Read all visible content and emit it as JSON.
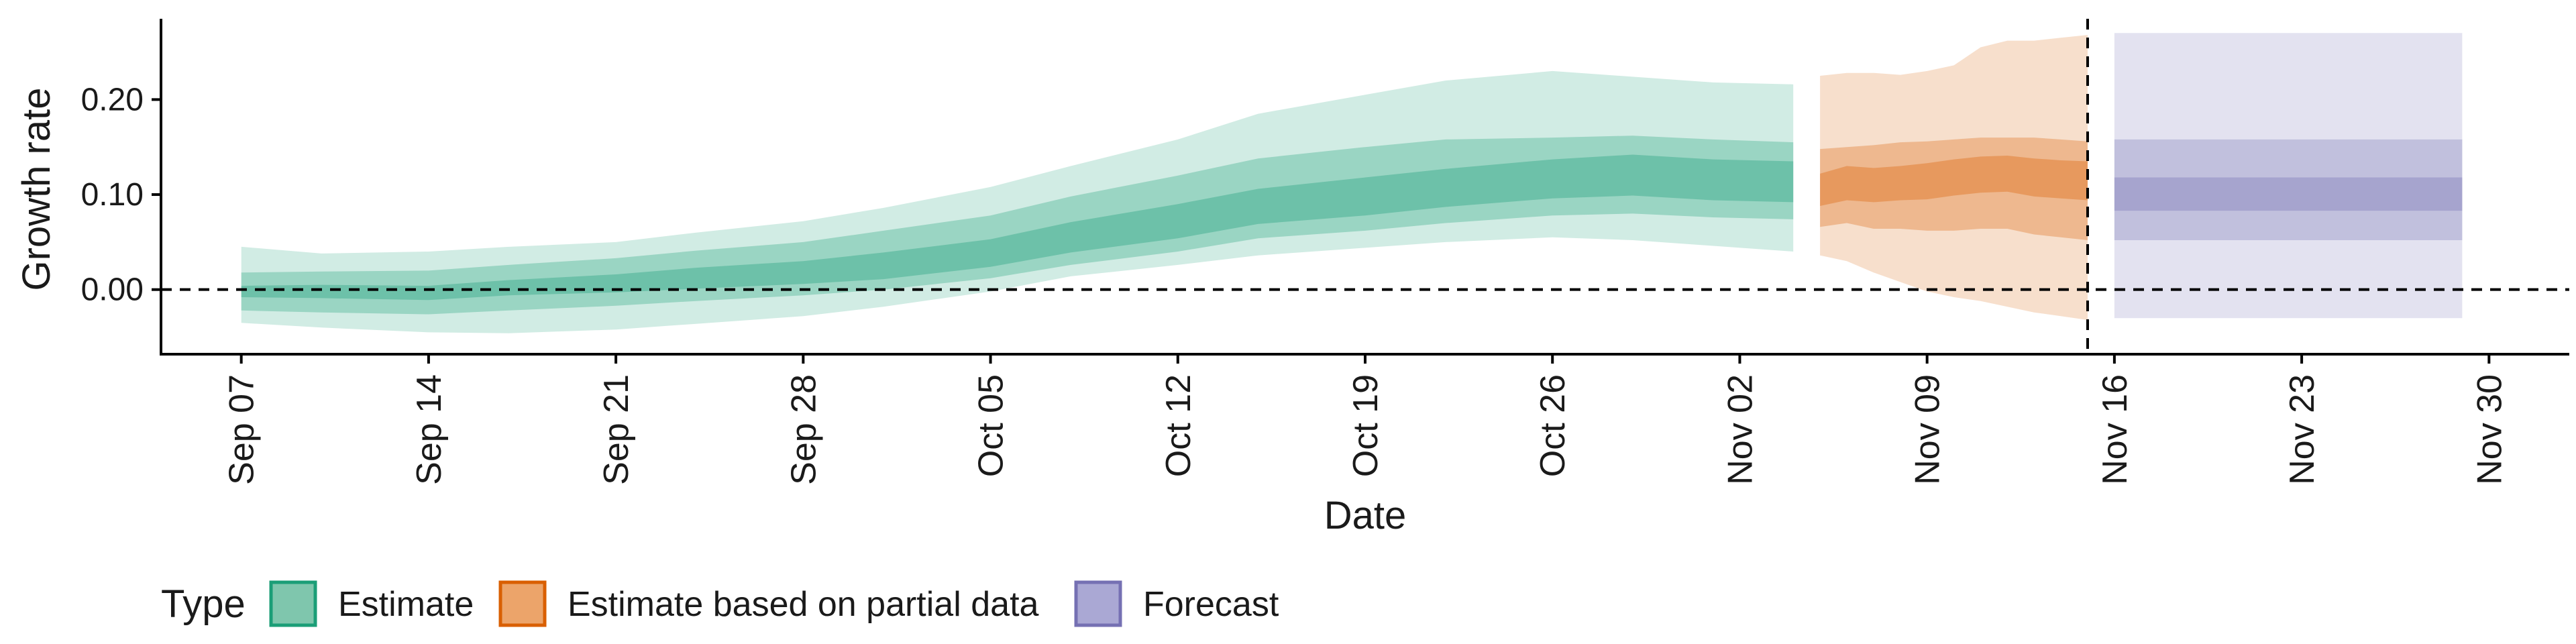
{
  "chart_data": {
    "type": "area",
    "title": "",
    "xlabel": "Date",
    "ylabel": "Growth rate",
    "x_range": [
      "2020-09-04",
      "2020-12-03"
    ],
    "ylim": [
      -0.068,
      0.285
    ],
    "y_ticks": [
      0.0,
      0.1,
      0.2
    ],
    "y_tick_labels": [
      "0.00",
      "0.10",
      "0.20"
    ],
    "x_ticks": [
      "2020-09-07",
      "2020-09-14",
      "2020-09-21",
      "2020-09-28",
      "2020-10-05",
      "2020-10-12",
      "2020-10-19",
      "2020-10-26",
      "2020-11-02",
      "2020-11-09",
      "2020-11-16",
      "2020-11-23",
      "2020-11-30"
    ],
    "x_tick_labels": [
      "Sep 07",
      "Sep 14",
      "Sep 21",
      "Sep 28",
      "Oct 05",
      "Oct 12",
      "Oct 19",
      "Oct 26",
      "Nov 02",
      "Nov 09",
      "Nov 16",
      "Nov 23",
      "Nov 30"
    ],
    "reference_lines": [
      {
        "axis": "y",
        "value": 0,
        "style": "dashed"
      },
      {
        "axis": "x",
        "value": "2020-11-15",
        "style": "dashed"
      }
    ],
    "grid": false,
    "legend": {
      "title": "Type",
      "position": "bottom-left"
    },
    "series": [
      {
        "name": "Estimate",
        "color": "#1B9E77",
        "dates": [
          "2020-09-07",
          "2020-09-10",
          "2020-09-14",
          "2020-09-17",
          "2020-09-21",
          "2020-09-24",
          "2020-09-28",
          "2020-10-01",
          "2020-10-05",
          "2020-10-08",
          "2020-10-12",
          "2020-10-15",
          "2020-10-19",
          "2020-10-22",
          "2020-10-26",
          "2020-10-29",
          "2020-11-01",
          "2020-11-04"
        ],
        "median": [
          -0.002,
          -0.002,
          -0.004,
          0.002,
          0.006,
          0.012,
          0.018,
          0.025,
          0.038,
          0.055,
          0.072,
          0.088,
          0.098,
          0.108,
          0.118,
          0.122,
          0.116,
          0.113
        ],
        "inner": [
          [
            -0.008,
            0.004
          ],
          [
            -0.009,
            0.005
          ],
          [
            -0.011,
            0.004
          ],
          [
            -0.006,
            0.01
          ],
          [
            -0.003,
            0.016
          ],
          [
            0.001,
            0.023
          ],
          [
            0.006,
            0.03
          ],
          [
            0.011,
            0.039
          ],
          [
            0.024,
            0.053
          ],
          [
            0.039,
            0.071
          ],
          [
            0.054,
            0.09
          ],
          [
            0.069,
            0.106
          ],
          [
            0.078,
            0.118
          ],
          [
            0.087,
            0.127
          ],
          [
            0.096,
            0.137
          ],
          [
            0.099,
            0.142
          ],
          [
            0.094,
            0.137
          ],
          [
            0.092,
            0.135
          ]
        ],
        "mid": [
          [
            -0.022,
            0.018
          ],
          [
            -0.024,
            0.019
          ],
          [
            -0.026,
            0.02
          ],
          [
            -0.022,
            0.026
          ],
          [
            -0.017,
            0.033
          ],
          [
            -0.012,
            0.041
          ],
          [
            -0.006,
            0.05
          ],
          [
            0.0,
            0.062
          ],
          [
            0.012,
            0.078
          ],
          [
            0.026,
            0.098
          ],
          [
            0.04,
            0.12
          ],
          [
            0.054,
            0.138
          ],
          [
            0.062,
            0.15
          ],
          [
            0.07,
            0.158
          ],
          [
            0.078,
            0.16
          ],
          [
            0.08,
            0.162
          ],
          [
            0.076,
            0.158
          ],
          [
            0.074,
            0.155
          ]
        ],
        "outer": [
          [
            -0.035,
            0.045
          ],
          [
            -0.04,
            0.038
          ],
          [
            -0.045,
            0.04
          ],
          [
            -0.046,
            0.045
          ],
          [
            -0.042,
            0.05
          ],
          [
            -0.036,
            0.06
          ],
          [
            -0.028,
            0.072
          ],
          [
            -0.018,
            0.086
          ],
          [
            -0.002,
            0.108
          ],
          [
            0.014,
            0.13
          ],
          [
            0.026,
            0.158
          ],
          [
            0.036,
            0.185
          ],
          [
            0.044,
            0.205
          ],
          [
            0.05,
            0.22
          ],
          [
            0.055,
            0.23
          ],
          [
            0.052,
            0.224
          ],
          [
            0.046,
            0.218
          ],
          [
            0.04,
            0.216
          ]
        ]
      },
      {
        "name": "Estimate based on partial data",
        "color": "#D95F02",
        "dates": [
          "2020-11-05",
          "2020-11-06",
          "2020-11-07",
          "2020-11-08",
          "2020-11-09",
          "2020-11-10",
          "2020-11-11",
          "2020-11-12",
          "2020-11-13",
          "2020-11-14",
          "2020-11-15"
        ],
        "median": [
          0.105,
          0.11,
          0.11,
          0.112,
          0.114,
          0.118,
          0.12,
          0.122,
          0.118,
          0.116,
          0.115
        ],
        "inner": [
          [
            0.088,
            0.122
          ],
          [
            0.094,
            0.13
          ],
          [
            0.092,
            0.128
          ],
          [
            0.094,
            0.13
          ],
          [
            0.095,
            0.133
          ],
          [
            0.099,
            0.137
          ],
          [
            0.102,
            0.14
          ],
          [
            0.103,
            0.141
          ],
          [
            0.098,
            0.138
          ],
          [
            0.096,
            0.136
          ],
          [
            0.094,
            0.135
          ]
        ],
        "mid": [
          [
            0.066,
            0.148
          ],
          [
            0.07,
            0.15
          ],
          [
            0.064,
            0.152
          ],
          [
            0.064,
            0.155
          ],
          [
            0.062,
            0.156
          ],
          [
            0.062,
            0.158
          ],
          [
            0.064,
            0.16
          ],
          [
            0.064,
            0.16
          ],
          [
            0.058,
            0.16
          ],
          [
            0.055,
            0.158
          ],
          [
            0.052,
            0.156
          ]
        ],
        "outer": [
          [
            0.036,
            0.225
          ],
          [
            0.03,
            0.228
          ],
          [
            0.018,
            0.228
          ],
          [
            0.008,
            0.226
          ],
          [
            -0.002,
            0.23
          ],
          [
            -0.008,
            0.236
          ],
          [
            -0.012,
            0.255
          ],
          [
            -0.018,
            0.262
          ],
          [
            -0.024,
            0.262
          ],
          [
            -0.028,
            0.265
          ],
          [
            -0.032,
            0.268
          ]
        ]
      },
      {
        "name": "Forecast",
        "color": "#7570B3",
        "dates": [
          "2020-11-16",
          "2020-11-29"
        ],
        "median": [
          0.1,
          0.1
        ],
        "inner": [
          [
            0.083,
            0.118
          ],
          [
            0.083,
            0.118
          ]
        ],
        "mid": [
          [
            0.052,
            0.158
          ],
          [
            0.052,
            0.158
          ]
        ],
        "outer": [
          [
            -0.03,
            0.27
          ],
          [
            -0.03,
            0.27
          ]
        ]
      }
    ]
  },
  "legend_colors": {
    "Estimate": {
      "fill": "#7fc6ad",
      "stroke": "#1B9E77"
    },
    "Estimate based on partial data": {
      "fill": "#eca46a",
      "stroke": "#D95F02"
    },
    "Forecast": {
      "fill": "#aaa8d4",
      "stroke": "#7570B3"
    }
  }
}
